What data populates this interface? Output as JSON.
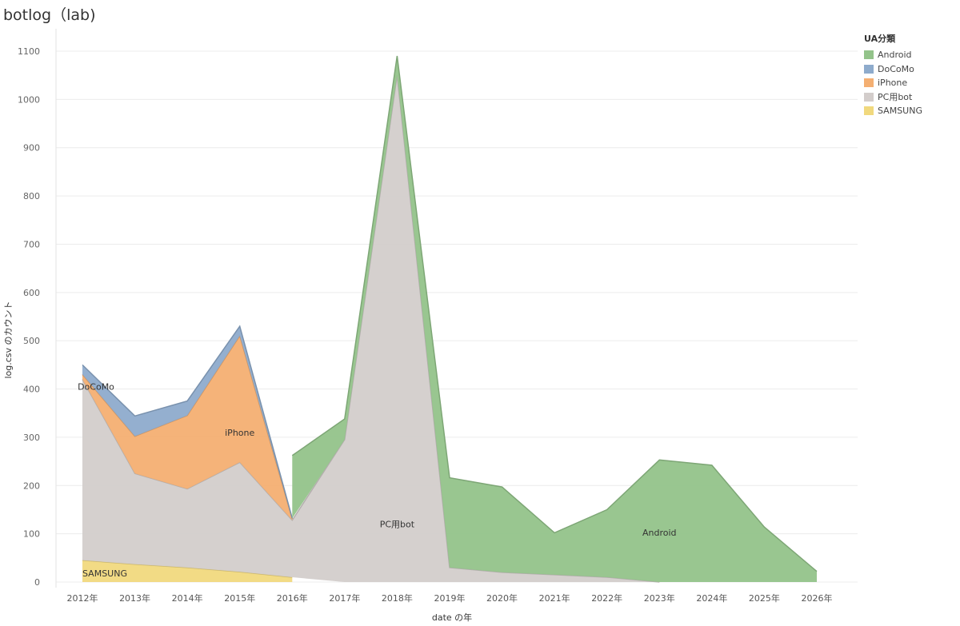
{
  "title": "botlog（lab)",
  "chart_data": {
    "type": "area",
    "stacked": true,
    "categories": [
      "2012年",
      "2013年",
      "2014年",
      "2015年",
      "2016年",
      "2017年",
      "2018年",
      "2019年",
      "2020年",
      "2021年",
      "2022年",
      "2023年",
      "2024年",
      "2025年",
      "2026年"
    ],
    "series": [
      {
        "name": "SAMSUNG",
        "color": "#f1d97e",
        "values": [
          45,
          37,
          30,
          21,
          10,
          null,
          null,
          null,
          null,
          null,
          null,
          null,
          null,
          null,
          null
        ]
      },
      {
        "name": "PC用bot",
        "color": "#d3cdcb",
        "values": [
          375,
          188,
          163,
          227,
          118,
          295,
          1050,
          30,
          20,
          15,
          10,
          0,
          null,
          null,
          null
        ]
      },
      {
        "name": "iPhone",
        "color": "#f4af72",
        "values": [
          10,
          77,
          152,
          262,
          3,
          null,
          null,
          null,
          null,
          null,
          null,
          null,
          null,
          null,
          null
        ]
      },
      {
        "name": "DoCoMo",
        "color": "#8eabcc",
        "values": [
          20,
          42,
          30,
          20,
          1,
          null,
          null,
          null,
          null,
          null,
          null,
          null,
          null,
          null,
          null
        ]
      },
      {
        "name": "Android",
        "color": "#93c38a",
        "values": [
          null,
          null,
          null,
          null,
          130,
          43,
          40,
          186,
          177,
          87,
          140,
          253,
          242,
          114,
          22
        ]
      }
    ],
    "ylim": [
      0,
      1100
    ],
    "yticks": [
      0,
      100,
      200,
      300,
      400,
      500,
      600,
      700,
      800,
      900,
      1000,
      1100
    ],
    "xlabel": "date の年",
    "ylabel": "log.csv のカウント",
    "legend_title": "UA分類",
    "legend": [
      "Android",
      "DoCoMo",
      "iPhone",
      "PC用bot",
      "SAMSUNG"
    ],
    "legend_position": "top-right",
    "grid": true,
    "annotations": [
      {
        "text": "DoCoMo",
        "x": "2012年",
        "y": 405
      },
      {
        "text": "iPhone",
        "x": "2015年",
        "y": 310
      },
      {
        "text": "PC用bot",
        "x": "2018年",
        "y": 120
      },
      {
        "text": "Android",
        "x": "2023年",
        "y": 103
      },
      {
        "text": "SAMSUNG",
        "x": "2012年",
        "y": 18
      }
    ]
  }
}
